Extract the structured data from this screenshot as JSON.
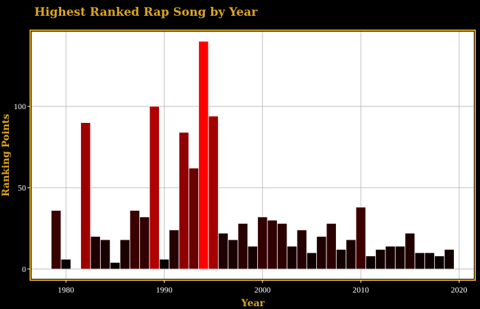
{
  "colors": {
    "background": "#000000",
    "plot_background": "#ffffff",
    "accent_gold": "#daa520",
    "grid": "#b0b0b0",
    "bar_outline": "#ffffff",
    "bar_low": "#000000",
    "bar_high": "#ff0000"
  },
  "chart_data": {
    "type": "bar",
    "title": "Highest Ranked Rap Song by Year",
    "xlabel": "Year",
    "ylabel": "Ranking Points",
    "xlim": [
      1976.5,
      2021.5
    ],
    "ylim": [
      -6,
      146
    ],
    "xticks": [
      1980,
      1990,
      2000,
      2010,
      2020
    ],
    "yticks": [
      0,
      50,
      100
    ],
    "grid": true,
    "legend": "none",
    "x": [
      1979,
      1980,
      1982,
      1983,
      1984,
      1985,
      1986,
      1987,
      1988,
      1989,
      1990,
      1991,
      1992,
      1993,
      1994,
      1995,
      1996,
      1997,
      1998,
      1999,
      2000,
      2001,
      2002,
      2003,
      2004,
      2005,
      2006,
      2007,
      2008,
      2009,
      2010,
      2011,
      2012,
      2013,
      2014,
      2015,
      2016,
      2017,
      2018,
      2019
    ],
    "values": [
      36,
      6,
      90,
      20,
      18,
      4,
      18,
      36,
      32,
      100,
      6,
      24,
      84,
      62,
      140,
      94,
      22,
      18,
      28,
      14,
      32,
      30,
      28,
      14,
      24,
      10,
      20,
      28,
      12,
      18,
      38,
      8,
      12,
      14,
      14,
      22,
      10,
      10,
      8,
      12
    ]
  }
}
